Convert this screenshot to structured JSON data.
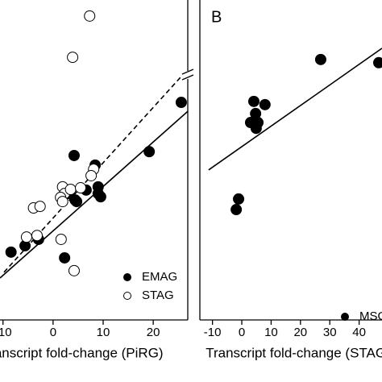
{
  "chart_data": [
    {
      "type": "scatter",
      "xlabel": "Transcript fold-change (PiRG)",
      "xlim": [
        -10.6,
        26.9
      ],
      "xticks": [
        -10,
        0,
        10,
        20
      ],
      "ylim": [
        0,
        100
      ],
      "legend": "lower right",
      "series": [
        {
          "name": "EMAG",
          "color": "#000000",
          "fill": "filled",
          "x": [
            25.6,
            19.2,
            4.2,
            8.4,
            9.0,
            9.0,
            9.5,
            6.6,
            4.4,
            4.7,
            2.3,
            -2.9,
            -5.6,
            -8.4,
            3.1
          ],
          "values": [
            68.0,
            52.6,
            51.4,
            48.4,
            41.6,
            39.5,
            38.5,
            40.6,
            37.5,
            37.0,
            19.4,
            25.2,
            23.2,
            21.2,
            39.5
          ]
        },
        {
          "name": "STAG",
          "color": "#000000",
          "fill": "open",
          "x": [
            7.3,
            3.9,
            8.1,
            7.6,
            1.9,
            2.3,
            1.5,
            3.5,
            5.5,
            -3.9,
            -2.6,
            -3.2,
            -5.3,
            1.6,
            4.2,
            1.9
          ],
          "values": [
            95.0,
            82.1,
            47.1,
            45.1,
            41.6,
            39.5,
            38.3,
            40.8,
            41.3,
            35.0,
            35.5,
            26.4,
            25.9,
            25.2,
            15.4,
            37.0
          ]
        }
      ],
      "fit_lines": [
        {
          "style": "solid",
          "x": [
            -10.6,
            26.9
          ],
          "y": [
            13.1,
            65.2
          ]
        },
        {
          "style": "dashed",
          "x": [
            -9.8,
            25.6
          ],
          "y": [
            14.9,
            76.1
          ]
        }
      ]
    },
    {
      "type": "scatter",
      "panel_label": "B",
      "xlabel": "Transcript fold-change (STAG)",
      "xlim": [
        -14.3,
        47.8
      ],
      "xticks": [
        -10,
        0,
        10,
        20,
        30,
        40
      ],
      "ylim": [
        0,
        100
      ],
      "legend": "lower right",
      "series": [
        {
          "name": "MSG",
          "color": "#000000",
          "fill": "filled",
          "x": [
            26.9,
            46.7,
            4.1,
            7.9,
            4.7,
            3.0,
            5.5,
            4.9,
            -1.1,
            -1.9
          ],
          "values": [
            81.4,
            80.4,
            68.3,
            67.3,
            64.5,
            61.7,
            61.7,
            59.9,
            37.8,
            34.5
          ]
        }
      ],
      "fit_lines": [
        {
          "style": "solid",
          "x": [
            -11.3,
            47.8
          ],
          "y": [
            46.9,
            84.9
          ]
        }
      ]
    }
  ]
}
